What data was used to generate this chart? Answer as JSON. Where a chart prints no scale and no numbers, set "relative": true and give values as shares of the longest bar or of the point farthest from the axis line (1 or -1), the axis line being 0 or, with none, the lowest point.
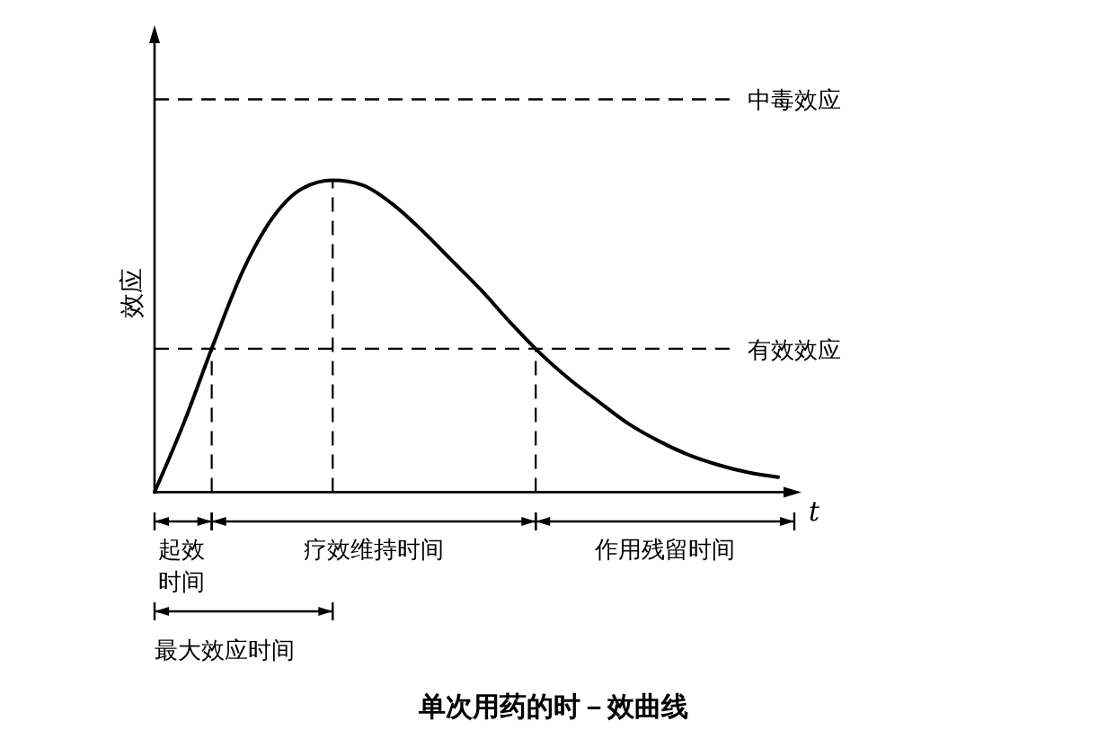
{
  "chart_data": {
    "type": "line",
    "title": "单次用药的时－效曲线",
    "xlabel": "t",
    "ylabel": "效应",
    "relative": true,
    "tick_labels": false,
    "categories": [
      null,
      null,
      null,
      null,
      null,
      null,
      null,
      null,
      null,
      null,
      null,
      null,
      null,
      null,
      null,
      null,
      null,
      null,
      null,
      null,
      null,
      null
    ],
    "series": [
      {
        "color": "#000000",
        "values": [
          0,
          0.225,
          0.479,
          0.715,
          0.883,
          0.975,
          1,
          0.985,
          0.925,
          0.84,
          0.744,
          0.648,
          0.542,
          0.444,
          0.36,
          0.287,
          0.217,
          0.163,
          0.119,
          0.087,
          0.063,
          0.048
        ]
      }
    ],
    "ref_lines": [
      {
        "axis": "y",
        "value": 1.26,
        "label": "中毒效应",
        "line_style": "dashed"
      },
      {
        "axis": "y",
        "value": 0.46,
        "label": "有效效应",
        "line_style": "dashed"
      }
    ],
    "annotations": [
      "起效时间",
      "疗效维持时间",
      "作用残留时间",
      "最大效应时间"
    ]
  }
}
